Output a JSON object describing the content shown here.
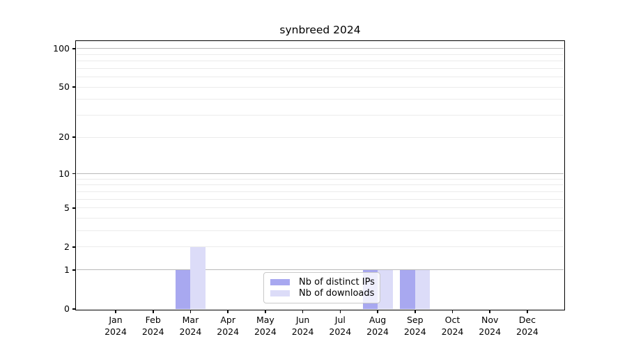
{
  "chart_data": {
    "type": "bar",
    "title": "synbreed 2024",
    "categories": [
      "Jan 2024",
      "Feb 2024",
      "Mar 2024",
      "Apr 2024",
      "May 2024",
      "Jun 2024",
      "Jul 2024",
      "Aug 2024",
      "Sep 2024",
      "Oct 2024",
      "Nov 2024",
      "Dec 2024"
    ],
    "series": [
      {
        "name": "Nb of distinct IPs",
        "color": "#a8a8f0",
        "values": [
          0,
          0,
          1,
          0,
          0,
          0,
          0,
          1,
          1,
          0,
          0,
          0
        ]
      },
      {
        "name": "Nb of downloads",
        "color": "#dcdcf8",
        "values": [
          0,
          0,
          2,
          0,
          0,
          0,
          0,
          1,
          1,
          0,
          0,
          0
        ]
      }
    ],
    "xlabel": "",
    "ylabel": "",
    "yscale": "log1p",
    "ylim": [
      0,
      113
    ],
    "yticks": [
      0,
      1,
      2,
      5,
      10,
      20,
      50,
      100
    ],
    "dark_gridlines": [
      1,
      10,
      100
    ],
    "light_gridlines": [
      2,
      3,
      4,
      5,
      6,
      7,
      8,
      9,
      20,
      30,
      40,
      50,
      60,
      70,
      80,
      90
    ],
    "grid": "horizontal",
    "legend_position": "inside-lower-center",
    "colors": {
      "dark_grid": "#b9b9b9",
      "light_grid": "#ebebeb",
      "axis": "#000000",
      "background": "#ffffff"
    }
  },
  "legend": {
    "items": [
      {
        "label": "Nb of distinct IPs",
        "color": "#a8a8f0"
      },
      {
        "label": "Nb of downloads",
        "color": "#dcdcf8"
      }
    ]
  }
}
